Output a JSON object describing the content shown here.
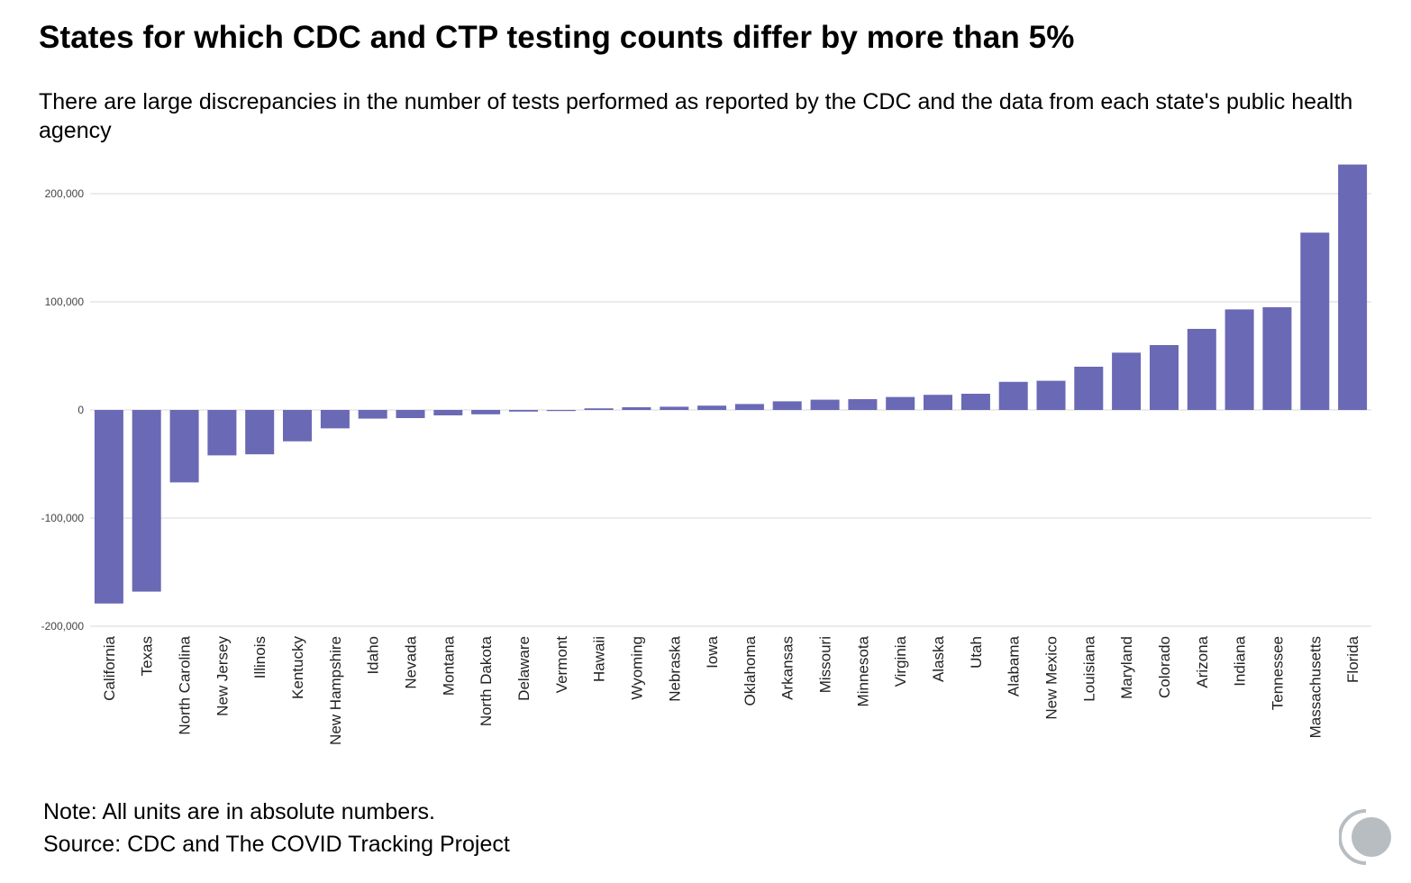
{
  "title": "States for which CDC and CTP testing counts differ by more than 5%",
  "subtitle": "There are large discrepancies in the number of tests performed as reported by the CDC and the data from each state's public health agency",
  "footer": {
    "note": "Note: All units are in absolute numbers.",
    "source": "Source: CDC and The COVID Tracking Project"
  },
  "colors": {
    "bar": "#6a69b5",
    "grid": "#d9d9d9",
    "logo": "#b7bdc1"
  },
  "logo_icon": "covid-tracking-project-logo-icon",
  "chart_data": {
    "type": "bar",
    "title": "",
    "xlabel": "",
    "ylabel": "",
    "ylim": [
      -200000,
      200000
    ],
    "yticks": [
      200000,
      100000,
      0,
      -100000,
      -200000
    ],
    "ytick_labels": [
      "200,000",
      "100,000",
      "0",
      "-100,000",
      "-200,000"
    ],
    "grid": true,
    "categories": [
      "California",
      "Texas",
      "North Carolina",
      "New Jersey",
      "Illinois",
      "Kentucky",
      "New Hampshire",
      "Idaho",
      "Nevada",
      "Montana",
      "North Dakota",
      "Delaware",
      "Vermont",
      "Hawaii",
      "Wyoming",
      "Nebraska",
      "Iowa",
      "Oklahoma",
      "Arkansas",
      "Missouri",
      "Minnesota",
      "Virginia",
      "Alaska",
      "Utah",
      "Alabama",
      "New Mexico",
      "Louisiana",
      "Maryland",
      "Colorado",
      "Arizona",
      "Indiana",
      "Tennessee",
      "Massachusetts",
      "Florida"
    ],
    "values": [
      -179000,
      -168000,
      -67000,
      -42000,
      -41000,
      -29000,
      -17000,
      -8000,
      -7500,
      -5000,
      -4000,
      -1500,
      -1000,
      1500,
      2500,
      3000,
      4000,
      5500,
      8000,
      9500,
      10000,
      12000,
      14000,
      15000,
      26000,
      27000,
      40000,
      53000,
      60000,
      75000,
      93000,
      95000,
      164000,
      227000
    ]
  }
}
